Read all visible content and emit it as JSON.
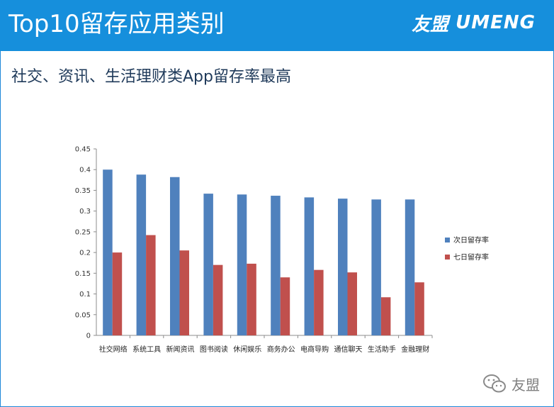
{
  "header": {
    "title": "Top10留存应用类别",
    "logo_cn": "友盟",
    "logo_en": "UMENG"
  },
  "subtitle": "社交、资讯、生活理财类App留存率最高",
  "watermark": {
    "text": "友盟",
    "icon": "wechat-icon"
  },
  "colors": {
    "header_bg": "#168fdc",
    "series1": "#4f81bd",
    "series2": "#c0504d"
  },
  "chart_data": {
    "type": "bar",
    "title": "",
    "xlabel": "",
    "ylabel": "",
    "categories": [
      "社交网络",
      "系统工具",
      "新闻资讯",
      "图书阅读",
      "休闲娱乐",
      "商务办公",
      "电商导购",
      "通信聊天",
      "生活助手",
      "金融理财"
    ],
    "series": [
      {
        "name": "次日留存率",
        "color": "#4f81bd",
        "values": [
          0.4,
          0.388,
          0.382,
          0.342,
          0.34,
          0.337,
          0.333,
          0.33,
          0.328,
          0.328
        ]
      },
      {
        "name": "七日留存率",
        "color": "#c0504d",
        "values": [
          0.2,
          0.242,
          0.205,
          0.17,
          0.173,
          0.14,
          0.158,
          0.152,
          0.092,
          0.128
        ]
      }
    ],
    "ylim": [
      0,
      0.45
    ],
    "yticks": [
      "0",
      "0.05",
      "0.1",
      "0.15",
      "0.2",
      "0.25",
      "0.3",
      "0.35",
      "0.4",
      "0.45"
    ],
    "legend_position": "right",
    "grid": false
  }
}
